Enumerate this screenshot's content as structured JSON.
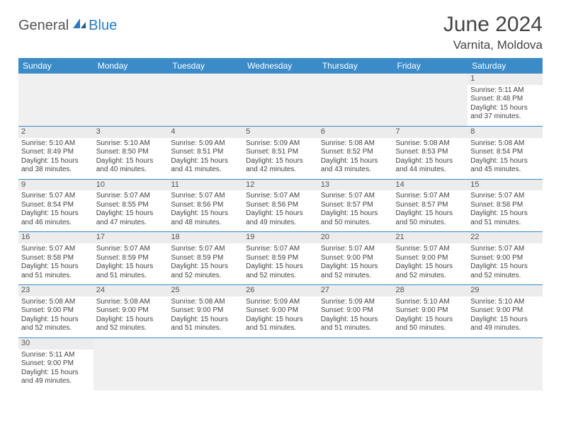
{
  "brand": {
    "word1": "General",
    "word2": "Blue"
  },
  "title": "June 2024",
  "location": "Varnita, Moldova",
  "colors": {
    "header_bg": "#3b8bc9",
    "header_text": "#ffffff",
    "row_divider": "#3b8bc9",
    "daynum_bg": "#ececec",
    "empty_bg": "#f0f0f0",
    "text": "#444444",
    "brand_gray": "#555555",
    "brand_blue": "#2b7ac0"
  },
  "typography": {
    "title_fontsize": 30,
    "location_fontsize": 17,
    "dayheader_fontsize": 12,
    "cell_fontsize": 10,
    "daynum_fontsize": 11
  },
  "day_headers": [
    "Sunday",
    "Monday",
    "Tuesday",
    "Wednesday",
    "Thursday",
    "Friday",
    "Saturday"
  ],
  "weeks": [
    [
      null,
      null,
      null,
      null,
      null,
      null,
      {
        "n": "1",
        "sunrise": "Sunrise: 5:11 AM",
        "sunset": "Sunset: 8:48 PM",
        "daylight": "Daylight: 15 hours and 37 minutes."
      }
    ],
    [
      {
        "n": "2",
        "sunrise": "Sunrise: 5:10 AM",
        "sunset": "Sunset: 8:49 PM",
        "daylight": "Daylight: 15 hours and 38 minutes."
      },
      {
        "n": "3",
        "sunrise": "Sunrise: 5:10 AM",
        "sunset": "Sunset: 8:50 PM",
        "daylight": "Daylight: 15 hours and 40 minutes."
      },
      {
        "n": "4",
        "sunrise": "Sunrise: 5:09 AM",
        "sunset": "Sunset: 8:51 PM",
        "daylight": "Daylight: 15 hours and 41 minutes."
      },
      {
        "n": "5",
        "sunrise": "Sunrise: 5:09 AM",
        "sunset": "Sunset: 8:51 PM",
        "daylight": "Daylight: 15 hours and 42 minutes."
      },
      {
        "n": "6",
        "sunrise": "Sunrise: 5:08 AM",
        "sunset": "Sunset: 8:52 PM",
        "daylight": "Daylight: 15 hours and 43 minutes."
      },
      {
        "n": "7",
        "sunrise": "Sunrise: 5:08 AM",
        "sunset": "Sunset: 8:53 PM",
        "daylight": "Daylight: 15 hours and 44 minutes."
      },
      {
        "n": "8",
        "sunrise": "Sunrise: 5:08 AM",
        "sunset": "Sunset: 8:54 PM",
        "daylight": "Daylight: 15 hours and 45 minutes."
      }
    ],
    [
      {
        "n": "9",
        "sunrise": "Sunrise: 5:07 AM",
        "sunset": "Sunset: 8:54 PM",
        "daylight": "Daylight: 15 hours and 46 minutes."
      },
      {
        "n": "10",
        "sunrise": "Sunrise: 5:07 AM",
        "sunset": "Sunset: 8:55 PM",
        "daylight": "Daylight: 15 hours and 47 minutes."
      },
      {
        "n": "11",
        "sunrise": "Sunrise: 5:07 AM",
        "sunset": "Sunset: 8:56 PM",
        "daylight": "Daylight: 15 hours and 48 minutes."
      },
      {
        "n": "12",
        "sunrise": "Sunrise: 5:07 AM",
        "sunset": "Sunset: 8:56 PM",
        "daylight": "Daylight: 15 hours and 49 minutes."
      },
      {
        "n": "13",
        "sunrise": "Sunrise: 5:07 AM",
        "sunset": "Sunset: 8:57 PM",
        "daylight": "Daylight: 15 hours and 50 minutes."
      },
      {
        "n": "14",
        "sunrise": "Sunrise: 5:07 AM",
        "sunset": "Sunset: 8:57 PM",
        "daylight": "Daylight: 15 hours and 50 minutes."
      },
      {
        "n": "15",
        "sunrise": "Sunrise: 5:07 AM",
        "sunset": "Sunset: 8:58 PM",
        "daylight": "Daylight: 15 hours and 51 minutes."
      }
    ],
    [
      {
        "n": "16",
        "sunrise": "Sunrise: 5:07 AM",
        "sunset": "Sunset: 8:58 PM",
        "daylight": "Daylight: 15 hours and 51 minutes."
      },
      {
        "n": "17",
        "sunrise": "Sunrise: 5:07 AM",
        "sunset": "Sunset: 8:59 PM",
        "daylight": "Daylight: 15 hours and 51 minutes."
      },
      {
        "n": "18",
        "sunrise": "Sunrise: 5:07 AM",
        "sunset": "Sunset: 8:59 PM",
        "daylight": "Daylight: 15 hours and 52 minutes."
      },
      {
        "n": "19",
        "sunrise": "Sunrise: 5:07 AM",
        "sunset": "Sunset: 8:59 PM",
        "daylight": "Daylight: 15 hours and 52 minutes."
      },
      {
        "n": "20",
        "sunrise": "Sunrise: 5:07 AM",
        "sunset": "Sunset: 9:00 PM",
        "daylight": "Daylight: 15 hours and 52 minutes."
      },
      {
        "n": "21",
        "sunrise": "Sunrise: 5:07 AM",
        "sunset": "Sunset: 9:00 PM",
        "daylight": "Daylight: 15 hours and 52 minutes."
      },
      {
        "n": "22",
        "sunrise": "Sunrise: 5:07 AM",
        "sunset": "Sunset: 9:00 PM",
        "daylight": "Daylight: 15 hours and 52 minutes."
      }
    ],
    [
      {
        "n": "23",
        "sunrise": "Sunrise: 5:08 AM",
        "sunset": "Sunset: 9:00 PM",
        "daylight": "Daylight: 15 hours and 52 minutes."
      },
      {
        "n": "24",
        "sunrise": "Sunrise: 5:08 AM",
        "sunset": "Sunset: 9:00 PM",
        "daylight": "Daylight: 15 hours and 52 minutes."
      },
      {
        "n": "25",
        "sunrise": "Sunrise: 5:08 AM",
        "sunset": "Sunset: 9:00 PM",
        "daylight": "Daylight: 15 hours and 51 minutes."
      },
      {
        "n": "26",
        "sunrise": "Sunrise: 5:09 AM",
        "sunset": "Sunset: 9:00 PM",
        "daylight": "Daylight: 15 hours and 51 minutes."
      },
      {
        "n": "27",
        "sunrise": "Sunrise: 5:09 AM",
        "sunset": "Sunset: 9:00 PM",
        "daylight": "Daylight: 15 hours and 51 minutes."
      },
      {
        "n": "28",
        "sunrise": "Sunrise: 5:10 AM",
        "sunset": "Sunset: 9:00 PM",
        "daylight": "Daylight: 15 hours and 50 minutes."
      },
      {
        "n": "29",
        "sunrise": "Sunrise: 5:10 AM",
        "sunset": "Sunset: 9:00 PM",
        "daylight": "Daylight: 15 hours and 49 minutes."
      }
    ],
    [
      {
        "n": "30",
        "sunrise": "Sunrise: 5:11 AM",
        "sunset": "Sunset: 9:00 PM",
        "daylight": "Daylight: 15 hours and 49 minutes."
      },
      null,
      null,
      null,
      null,
      null,
      null
    ]
  ]
}
